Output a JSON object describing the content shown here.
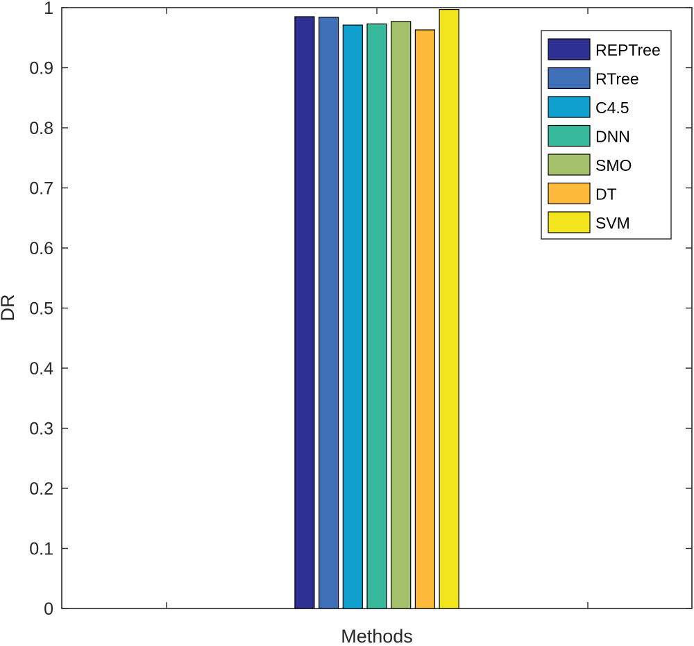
{
  "chart_data": {
    "type": "bar",
    "xlabel": "Methods",
    "ylabel": "DR",
    "ylim": [
      0,
      1
    ],
    "yticks": [
      "0",
      "0.1",
      "0.2",
      "0.3",
      "0.4",
      "0.5",
      "0.6",
      "0.7",
      "0.8",
      "0.9",
      "1"
    ],
    "grid": false,
    "legend_position": "top-right",
    "series": [
      {
        "name": "REPTree",
        "value": 0.985,
        "color": "#2E3192"
      },
      {
        "name": "RTree",
        "value": 0.984,
        "color": "#3F6FB7"
      },
      {
        "name": "C4.5",
        "value": 0.971,
        "color": "#0FA0D0"
      },
      {
        "name": "DNN",
        "value": 0.973,
        "color": "#37B99B"
      },
      {
        "name": "SMO",
        "value": 0.977,
        "color": "#A5C06A"
      },
      {
        "name": "DT",
        "value": 0.963,
        "color": "#FDB93A"
      },
      {
        "name": "SVM",
        "value": 0.997,
        "color": "#F1E61E"
      }
    ]
  }
}
